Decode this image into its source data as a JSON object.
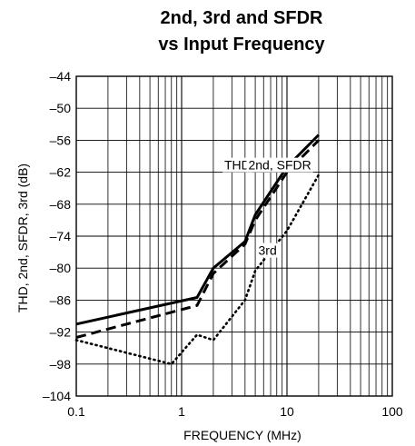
{
  "chart_data": {
    "type": "line",
    "title_line1": "2nd, 3rd and SFDR",
    "title_line2": "vs Input Frequency",
    "xlabel": "FREQUENCY (MHz)",
    "ylabel": "THD, 2nd, SFDR, 3rd (dB)",
    "x_scale": "log",
    "xlim": [
      0.1,
      100
    ],
    "ylim": [
      -104,
      -44
    ],
    "x_ticks": [
      0.1,
      1,
      10,
      100
    ],
    "x_tick_labels": [
      "0.1",
      "1",
      "10",
      "100"
    ],
    "y_ticks": [
      -104,
      -98,
      -92,
      -86,
      -80,
      -74,
      -68,
      -62,
      -56,
      -50,
      -44
    ],
    "y_tick_labels": [
      "–104",
      "–98",
      "–92",
      "–86",
      "–80",
      "–74",
      "–68",
      "–62",
      "–56",
      "–50",
      "–44"
    ],
    "grid": true,
    "series": [
      {
        "name": "THD",
        "style": "solid",
        "points": [
          [
            0.1,
            -90.5
          ],
          [
            1.4,
            -85.5
          ],
          [
            2,
            -80
          ],
          [
            4,
            -75
          ],
          [
            5,
            -70
          ],
          [
            10,
            -61
          ],
          [
            20,
            -55
          ]
        ]
      },
      {
        "name": "2nd, SFDR",
        "style": "dashed",
        "points": [
          [
            0.1,
            -93
          ],
          [
            1.4,
            -87
          ],
          [
            2,
            -81
          ],
          [
            4,
            -75.5
          ],
          [
            5,
            -71
          ],
          [
            10,
            -62
          ],
          [
            20,
            -56
          ]
        ]
      },
      {
        "name": "3rd",
        "style": "dotted",
        "points": [
          [
            0.1,
            -93.5
          ],
          [
            0.8,
            -98
          ],
          [
            1.4,
            -92.5
          ],
          [
            2,
            -93.5
          ],
          [
            4,
            -86
          ],
          [
            5,
            -80.5
          ],
          [
            10,
            -73
          ],
          [
            20,
            -62.5
          ]
        ]
      }
    ],
    "annotations": [
      {
        "text": "THD",
        "x": 4.5,
        "y": -61.5
      },
      {
        "text": "2nd, SFDR",
        "x": 17,
        "y": -61.5
      },
      {
        "text": "3rd",
        "x": 8,
        "y": -77.5
      }
    ]
  }
}
